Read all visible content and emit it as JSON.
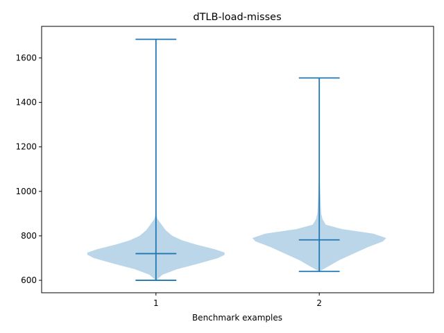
{
  "chart_data": {
    "type": "violin",
    "title": "dTLB-load-misses",
    "xlabel": "Benchmark examples",
    "ylabel": "",
    "xlim": [
      0.3,
      2.7
    ],
    "ylim": [
      544,
      1742
    ],
    "x_ticks": [
      1,
      2
    ],
    "x_tick_labels": [
      "1",
      "2"
    ],
    "y_ticks": [
      600,
      800,
      1000,
      1200,
      1400,
      1600
    ],
    "y_tick_labels": [
      "600",
      "800",
      "1000",
      "1200",
      "1400",
      "1600"
    ],
    "grid": false,
    "colors": {
      "body": "#1f77b4",
      "body_opacity": 0.3,
      "lines": "#1f77b4"
    },
    "violins": [
      {
        "position": 1,
        "min": 600,
        "max": 1684,
        "median": 720,
        "density": [
          [
            600,
            0.0
          ],
          [
            625,
            0.04
          ],
          [
            650,
            0.13
          ],
          [
            675,
            0.26
          ],
          [
            700,
            0.38
          ],
          [
            715,
            0.42
          ],
          [
            725,
            0.42
          ],
          [
            740,
            0.36
          ],
          [
            760,
            0.25
          ],
          [
            780,
            0.16
          ],
          [
            800,
            0.1
          ],
          [
            825,
            0.06
          ],
          [
            850,
            0.035
          ],
          [
            875,
            0.01
          ],
          [
            900,
            0.0
          ]
        ]
      },
      {
        "position": 2,
        "min": 640,
        "max": 1510,
        "median": 782,
        "density": [
          [
            640,
            0.0
          ],
          [
            660,
            0.05
          ],
          [
            690,
            0.12
          ],
          [
            720,
            0.21
          ],
          [
            750,
            0.3
          ],
          [
            775,
            0.39
          ],
          [
            790,
            0.41
          ],
          [
            810,
            0.33
          ],
          [
            830,
            0.14
          ],
          [
            850,
            0.04
          ],
          [
            875,
            0.02
          ],
          [
            900,
            0.012
          ],
          [
            950,
            0.008
          ],
          [
            1000,
            0.005
          ],
          [
            1050,
            0.003
          ],
          [
            1110,
            0.0
          ]
        ]
      }
    ]
  }
}
